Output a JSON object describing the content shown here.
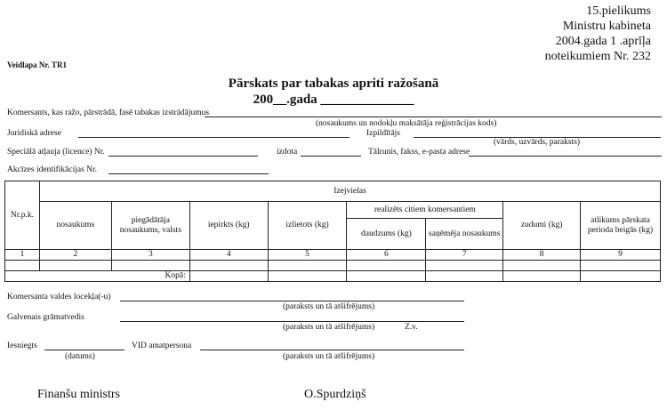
{
  "annex": {
    "line1": "15.pielikums",
    "line2": "Ministru kabineta",
    "line3": "2004.gada  1 .aprīļa",
    "line4": "noteikumiem Nr. 232"
  },
  "form_id": "Veidlapa Nr. TR1",
  "title": "Pārskats par tabakas apriti ražošanā",
  "subtitle": "200__.gada ______________",
  "fields": {
    "company": "Komersants, kas ražo, pārstrādā, fasē  tabakas izstrādājumus",
    "company_hint": "(nosaukums un nodokļu maksātāja reģistrācijas kods)",
    "legal_address": "Juridiskā adrese",
    "executor": "Izpildītājs",
    "executor_hint": "(vārds, uzvārds, paraksts)",
    "license": "Speciālā atļauja (licence) Nr.",
    "issued": "izdota",
    "contacts": "Tālrunis, fakss, e-pasta adrese",
    "excise": "Akcīzes identifikācijas Nr."
  },
  "table": {
    "nr": "Nr.p.k.",
    "group": "Izejvielas",
    "realized": "realizēts citiem komersantiem",
    "cols": [
      "nosaukums",
      "piegādātāja nosaukums, valsts",
      "iepirkts (kg)",
      "izlietots (kg)",
      "daudzums (kg)",
      "saņēmēja nosaukums",
      "zudumi (kg)",
      "atlikums pārskata perioda beigās (kg)"
    ],
    "numbers": [
      "1",
      "2",
      "3",
      "4",
      "5",
      "6",
      "7",
      "8",
      "9"
    ],
    "total": "Kopā:"
  },
  "signatures": {
    "board": "Komersanta valdes locekļa(-u)",
    "board_hint": "(paraksts un tā atšifrējums)",
    "accountant": "Galvenais grāmatvedis",
    "accountant_hint": "(paraksts un tā atšifrējums)",
    "seal": "Z.v.",
    "submitted": "Iesniegts",
    "date_hint": "(datums)",
    "vid": "VID amatpersona",
    "vid_hint": "(paraksts un tā atšifrējums)"
  },
  "footer": {
    "role": "Finanšu ministrs",
    "name": "O.Spurdziņš"
  }
}
